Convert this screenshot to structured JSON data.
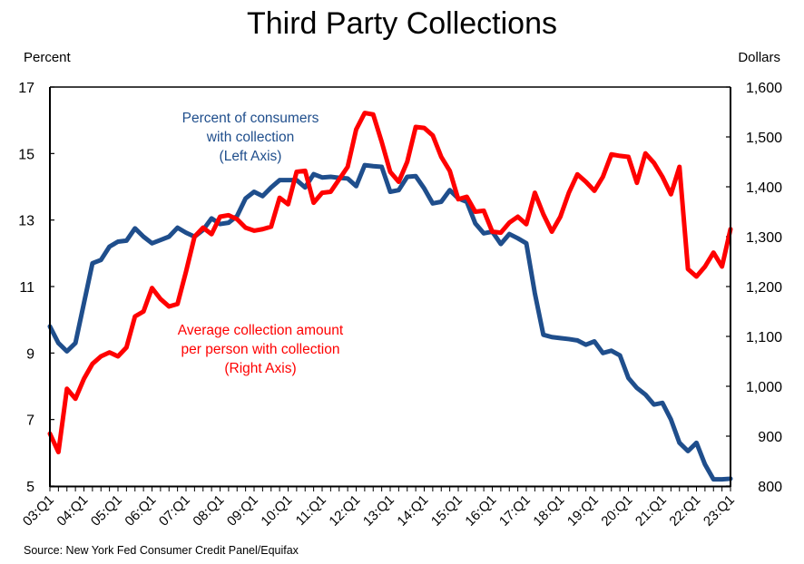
{
  "chart_data": {
    "type": "line",
    "title": "Third Party Collections",
    "left_axis": {
      "label": "Percent",
      "ylim": [
        5,
        17
      ],
      "ticks": [
        5,
        7,
        9,
        11,
        13,
        15,
        17
      ],
      "tick_labels": [
        "5",
        "7",
        "9",
        "11",
        "13",
        "15",
        "17"
      ]
    },
    "right_axis": {
      "label": "Dollars",
      "ylim": [
        800,
        1600
      ],
      "ticks": [
        800,
        900,
        1000,
        1100,
        1200,
        1300,
        1400,
        1500,
        1600
      ],
      "tick_labels": [
        "800",
        "900",
        "1,000",
        "1,100",
        "1,200",
        "1,300",
        "1,400",
        "1,500",
        "1,600"
      ]
    },
    "x_tick_labels": [
      "03:Q1",
      "04:Q1",
      "05:Q1",
      "06:Q1",
      "07:Q1",
      "08:Q1",
      "09:Q1",
      "10:Q1",
      "11:Q1",
      "12:Q1",
      "13:Q1",
      "14:Q1",
      "15:Q1",
      "16:Q1",
      "17:Q1",
      "18:Q1",
      "19:Q1",
      "20:Q1",
      "21:Q1",
      "22:Q1",
      "23:Q1"
    ],
    "x_start": "03:Q1",
    "x_end": "23:Q1",
    "grid": false,
    "series": [
      {
        "name": "Percent of consumers with collection",
        "axis": "left",
        "color": "#1f4e8c",
        "annotation": [
          "Percent of consumers",
          "with collection",
          "(Left Axis)"
        ],
        "values": [
          9.8,
          9.3,
          9.05,
          9.3,
          10.5,
          11.7,
          11.8,
          12.2,
          12.35,
          12.38,
          12.75,
          12.5,
          12.3,
          12.4,
          12.5,
          12.77,
          12.62,
          12.5,
          12.7,
          13.05,
          12.88,
          12.92,
          13.12,
          13.65,
          13.85,
          13.72,
          13.98,
          14.2,
          14.2,
          14.2,
          13.98,
          14.38,
          14.28,
          14.3,
          14.27,
          14.25,
          14.02,
          14.65,
          14.62,
          14.6,
          13.85,
          13.9,
          14.3,
          14.32,
          13.95,
          13.5,
          13.55,
          13.9,
          13.65,
          13.55,
          12.9,
          12.6,
          12.65,
          12.28,
          12.58,
          12.45,
          12.3,
          10.8,
          9.55,
          9.48,
          9.45,
          9.42,
          9.38,
          9.25,
          9.35,
          9.0,
          9.07,
          8.93,
          8.25,
          7.95,
          7.75,
          7.45,
          7.5,
          7.0,
          6.3,
          6.05,
          6.3,
          5.65,
          5.2,
          5.2,
          5.22
        ]
      },
      {
        "name": "Average collection amount per person with collection",
        "axis": "right",
        "color": "#ff0000",
        "annotation": [
          "Average collection amount",
          "per person with collection",
          "(Right Axis)"
        ],
        "values": [
          905,
          868,
          995,
          975,
          1015,
          1045,
          1060,
          1068,
          1060,
          1078,
          1140,
          1150,
          1197,
          1175,
          1160,
          1165,
          1230,
          1300,
          1318,
          1305,
          1340,
          1343,
          1335,
          1318,
          1312,
          1315,
          1320,
          1378,
          1365,
          1430,
          1432,
          1368,
          1388,
          1390,
          1415,
          1440,
          1515,
          1548,
          1545,
          1490,
          1430,
          1410,
          1450,
          1520,
          1518,
          1503,
          1460,
          1432,
          1375,
          1380,
          1350,
          1352,
          1310,
          1308,
          1328,
          1340,
          1325,
          1388,
          1345,
          1310,
          1340,
          1388,
          1425,
          1410,
          1392,
          1420,
          1465,
          1462,
          1460,
          1408,
          1467,
          1448,
          1420,
          1385,
          1440,
          1235,
          1220,
          1240,
          1268,
          1240,
          1315
        ]
      }
    ],
    "source": "Source: New York Fed Consumer Credit Panel/Equifax"
  }
}
